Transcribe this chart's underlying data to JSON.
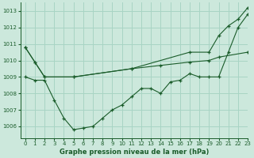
{
  "title": "Graphe pression niveau de la mer (hPa)",
  "bg_color": "#cce8dc",
  "grid_color": "#a8d4c4",
  "line_color": "#1a5c2a",
  "xlim": [
    -0.5,
    23
  ],
  "ylim": [
    1005.3,
    1013.5
  ],
  "yticks": [
    1006,
    1007,
    1008,
    1009,
    1010,
    1011,
    1012,
    1013
  ],
  "xticks": [
    0,
    1,
    2,
    3,
    4,
    5,
    6,
    7,
    8,
    9,
    10,
    11,
    12,
    13,
    14,
    15,
    16,
    17,
    18,
    19,
    20,
    21,
    22,
    23
  ],
  "line_steep_x": [
    0,
    1,
    2,
    5,
    11,
    17,
    19,
    20,
    21,
    22,
    23
  ],
  "line_steep_y": [
    1010.8,
    1009.9,
    1009.0,
    1009.0,
    1009.5,
    1010.5,
    1010.5,
    1011.5,
    1012.1,
    1012.5,
    1013.2
  ],
  "line_mid_x": [
    0,
    1,
    2,
    5,
    11,
    14,
    17,
    19,
    20,
    23
  ],
  "line_mid_y": [
    1010.8,
    1009.9,
    1009.0,
    1009.0,
    1009.5,
    1009.7,
    1009.9,
    1010.0,
    1010.2,
    1010.5
  ],
  "line_detail_x": [
    0,
    1,
    2,
    3,
    4,
    5,
    6,
    7,
    8,
    9,
    10,
    11,
    12,
    13,
    14,
    15,
    16,
    17,
    18,
    19,
    20,
    21,
    22,
    23
  ],
  "line_detail_y": [
    1009.0,
    1008.8,
    1008.8,
    1007.6,
    1006.5,
    1005.8,
    1005.9,
    1006.0,
    1006.5,
    1007.0,
    1007.3,
    1007.8,
    1008.3,
    1008.3,
    1008.0,
    1008.7,
    1008.8,
    1009.2,
    1009.0,
    1009.0,
    1009.0,
    1010.5,
    1012.0,
    1012.8
  ]
}
